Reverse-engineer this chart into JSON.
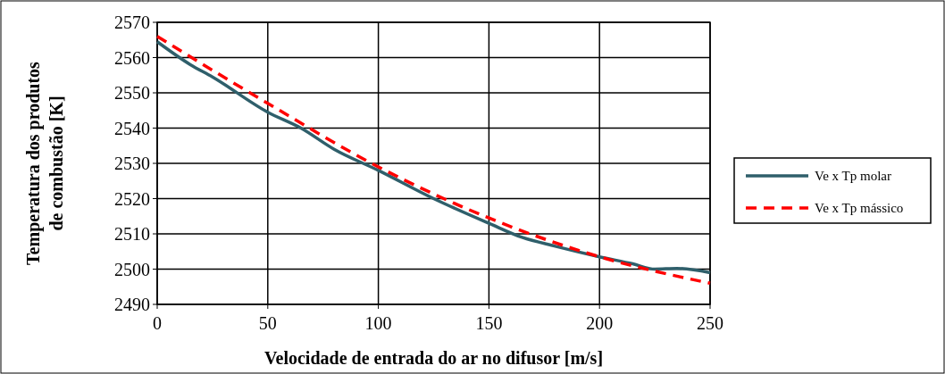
{
  "chart_data": {
    "type": "line",
    "xlabel": "Velocidade de entrada do ar no difusor [m/s]",
    "ylabel": "Temperatura dos produtos\nde combustão [K]",
    "xlim": [
      0,
      250
    ],
    "xticks": [
      0,
      50,
      100,
      150,
      200,
      250
    ],
    "ylim": [
      2490,
      2570
    ],
    "yticks": [
      2490,
      2500,
      2510,
      2520,
      2530,
      2540,
      2550,
      2560,
      2570
    ],
    "grid": true,
    "legend": "right",
    "series": [
      {
        "name": "Ve x Tp molar",
        "color": "#2f5f6b",
        "line_style": "solid",
        "x": [
          0,
          15,
          25,
          50,
          65,
          80,
          100,
          125,
          150,
          165,
          180,
          200,
          215,
          225,
          235,
          250
        ],
        "values": [
          2564.5,
          2558,
          2554.5,
          2544.5,
          2540,
          2534,
          2528,
          2520,
          2513,
          2509,
          2506.5,
          2503.5,
          2501.5,
          2500,
          2500.2,
          2499
        ]
      },
      {
        "name": "Ve x Tp mássico",
        "color": "#ff0000",
        "line_style": "dashed",
        "x": [
          0,
          50,
          100,
          150,
          200,
          250
        ],
        "values": [
          2566,
          2547,
          2529,
          2514.5,
          2503.5,
          2496
        ]
      }
    ]
  }
}
